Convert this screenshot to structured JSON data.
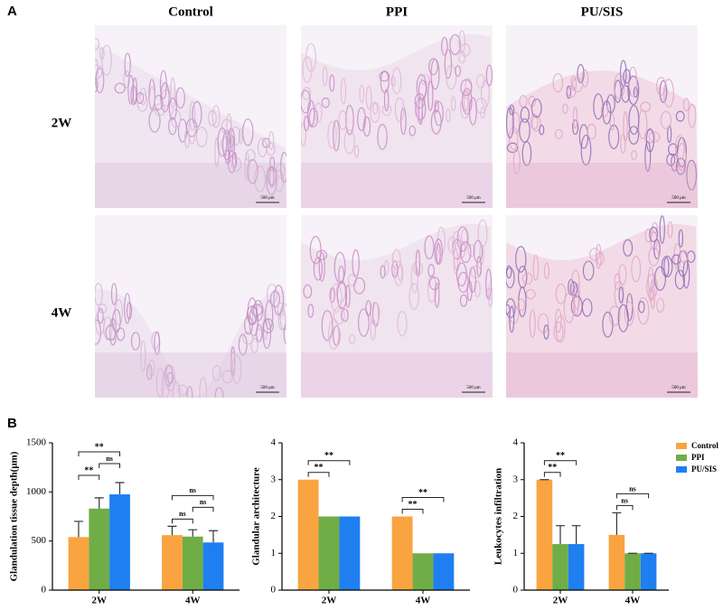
{
  "panel_a": {
    "label": "A",
    "columns": [
      "Control",
      "PPI",
      "PU/SIS"
    ],
    "rows": [
      "2W",
      "4W"
    ],
    "scale_bar": "500 μm"
  },
  "panel_b": {
    "label": "B"
  },
  "chart_data": [
    {
      "type": "bar",
      "y_label": "Glandulation tissue depth(μm)",
      "categories": [
        "2W",
        "4W"
      ],
      "series": [
        {
          "name": "Control",
          "color": "#f9a440",
          "values": [
            540,
            560
          ],
          "errors": [
            160,
            90
          ]
        },
        {
          "name": "PPI",
          "color": "#70ad47",
          "values": [
            830,
            545
          ],
          "errors": [
            110,
            70
          ]
        },
        {
          "name": "PU/SIS",
          "color": "#1f7ff0",
          "values": [
            975,
            485
          ],
          "errors": [
            120,
            120
          ]
        }
      ],
      "ylim": [
        0,
        1500
      ],
      "yticks": [
        0,
        500,
        1000,
        1500
      ],
      "annotations": [
        {
          "text": "**",
          "category": "2W",
          "pair": [
            "Control",
            "PPI"
          ]
        },
        {
          "text": "ns",
          "category": "2W",
          "pair": [
            "PPI",
            "PU/SIS"
          ]
        },
        {
          "text": "**",
          "category": "2W",
          "pair": [
            "Control",
            "PU/SIS"
          ]
        },
        {
          "text": "ns",
          "category": "4W",
          "pair": [
            "Control",
            "PPI"
          ]
        },
        {
          "text": "ns",
          "category": "4W",
          "pair": [
            "PPI",
            "PU/SIS"
          ]
        },
        {
          "text": "ns",
          "category": "4W",
          "pair": [
            "Control",
            "PU/SIS"
          ]
        }
      ]
    },
    {
      "type": "bar",
      "y_label": "Glandular architecture",
      "categories": [
        "2W",
        "4W"
      ],
      "series": [
        {
          "name": "Control",
          "color": "#f9a440",
          "values": [
            3,
            2
          ]
        },
        {
          "name": "PPI",
          "color": "#70ad47",
          "values": [
            2,
            1
          ]
        },
        {
          "name": "PU/SIS",
          "color": "#1f7ff0",
          "values": [
            2,
            1
          ]
        }
      ],
      "ylim": [
        0,
        4
      ],
      "yticks": [
        0,
        1,
        2,
        3,
        4
      ],
      "annotations": [
        {
          "text": "**",
          "category": "2W",
          "pair": [
            "Control",
            "PPI"
          ]
        },
        {
          "text": "**",
          "category": "2W",
          "pair": [
            "Control",
            "PU/SIS"
          ]
        },
        {
          "text": "**",
          "category": "4W",
          "pair": [
            "Control",
            "PPI"
          ]
        },
        {
          "text": "**",
          "category": "4W",
          "pair": [
            "Control",
            "PU/SIS"
          ]
        }
      ]
    },
    {
      "type": "bar",
      "y_label": "Leukocytes infiltration",
      "categories": [
        "2W",
        "4W"
      ],
      "series": [
        {
          "name": "Control",
          "color": "#f9a440",
          "values": [
            3,
            1.5
          ],
          "errors": [
            0,
            0.6
          ]
        },
        {
          "name": "PPI",
          "color": "#70ad47",
          "values": [
            1.25,
            1
          ],
          "errors": [
            0.5,
            0
          ]
        },
        {
          "name": "PU/SIS",
          "color": "#1f7ff0",
          "values": [
            1.25,
            1
          ],
          "errors": [
            0.5,
            0
          ]
        }
      ],
      "ylim": [
        0,
        4
      ],
      "yticks": [
        0,
        1,
        2,
        3,
        4
      ],
      "legend": "upper right",
      "annotations": [
        {
          "text": "**",
          "category": "2W",
          "pair": [
            "Control",
            "PPI"
          ]
        },
        {
          "text": "**",
          "category": "2W",
          "pair": [
            "Control",
            "PU/SIS"
          ]
        },
        {
          "text": "ns",
          "category": "4W",
          "pair": [
            "Control",
            "PPI"
          ]
        },
        {
          "text": "ns",
          "category": "4W",
          "pair": [
            "Control",
            "PU/SIS"
          ]
        }
      ]
    }
  ]
}
